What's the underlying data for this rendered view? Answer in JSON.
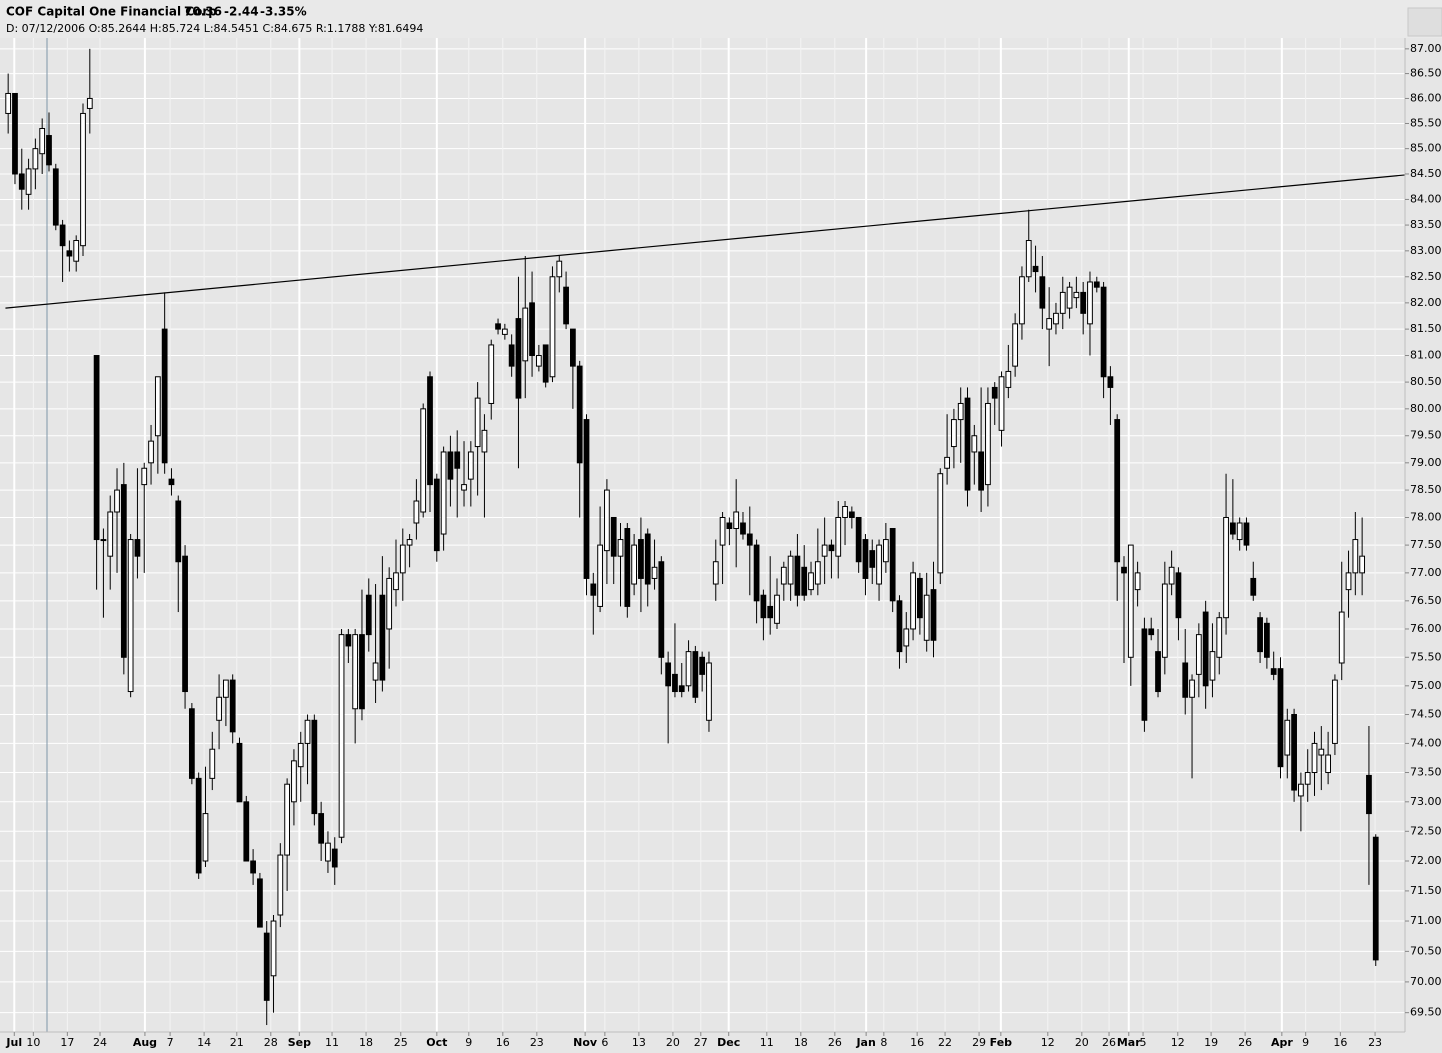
{
  "chart_data": {
    "type": "candlestick",
    "title": "COF Capital One Financial Corp",
    "last": "70.36",
    "change": "-2.44",
    "change_pct": "-3.35%",
    "change_color": "#e00000",
    "info": "D: 07/12/2006 O:85.2644 H:85.724 L:84.5451 C:84.675 R:1.1788 Y:81.6494",
    "up_color": "#ffffff",
    "down_color": "#000000",
    "log_scale": true,
    "grid": true,
    "xlim": [
      -1.2,
      205.3
    ],
    "ylim": [
      69.22,
      87.22
    ],
    "xticks": [
      {
        "value": 0.9,
        "label": "Jul"
      },
      {
        "value": 3.7,
        "label": "10"
      },
      {
        "value": 8.7,
        "label": "17"
      },
      {
        "value": 13.5,
        "label": "24"
      },
      {
        "value": 20.1,
        "label": "Aug"
      },
      {
        "value": 23.8,
        "label": "7"
      },
      {
        "value": 28.8,
        "label": "14"
      },
      {
        "value": 33.6,
        "label": "21"
      },
      {
        "value": 38.6,
        "label": "28"
      },
      {
        "value": 42.8,
        "label": "Sep"
      },
      {
        "value": 47.6,
        "label": "11"
      },
      {
        "value": 52.6,
        "label": "18"
      },
      {
        "value": 57.7,
        "label": "25"
      },
      {
        "value": 63.0,
        "label": "Oct"
      },
      {
        "value": 67.7,
        "label": "9"
      },
      {
        "value": 72.7,
        "label": "16"
      },
      {
        "value": 77.7,
        "label": "23"
      },
      {
        "value": 84.8,
        "label": "Nov"
      },
      {
        "value": 87.7,
        "label": "6"
      },
      {
        "value": 92.7,
        "label": "13"
      },
      {
        "value": 97.7,
        "label": "20"
      },
      {
        "value": 101.8,
        "label": "27"
      },
      {
        "value": 105.9,
        "label": "Dec"
      },
      {
        "value": 111.5,
        "label": "11"
      },
      {
        "value": 116.5,
        "label": "18"
      },
      {
        "value": 121.5,
        "label": "26"
      },
      {
        "value": 126.1,
        "label": "Jan"
      },
      {
        "value": 128.7,
        "label": "8"
      },
      {
        "value": 133.6,
        "label": "16"
      },
      {
        "value": 137.7,
        "label": "22"
      },
      {
        "value": 142.7,
        "label": "29"
      },
      {
        "value": 145.9,
        "label": "Feb"
      },
      {
        "value": 152.8,
        "label": "12"
      },
      {
        "value": 157.8,
        "label": "20"
      },
      {
        "value": 161.8,
        "label": "26"
      },
      {
        "value": 164.7,
        "label": "Mar"
      },
      {
        "value": 166.8,
        "label": "5"
      },
      {
        "value": 171.9,
        "label": "12"
      },
      {
        "value": 176.8,
        "label": "19"
      },
      {
        "value": 181.8,
        "label": "26"
      },
      {
        "value": 187.2,
        "label": "Apr"
      },
      {
        "value": 190.7,
        "label": "9"
      },
      {
        "value": 195.8,
        "label": "16"
      },
      {
        "value": 200.9,
        "label": "23"
      }
    ],
    "yticks": [
      {
        "value": 87,
        "label": "87.00"
      },
      {
        "value": 86.5,
        "label": "86.50"
      },
      {
        "value": 86,
        "label": "86.00"
      },
      {
        "value": 85.5,
        "label": "85.50"
      },
      {
        "value": 85,
        "label": "85.00"
      },
      {
        "value": 84.5,
        "label": "84.50"
      },
      {
        "value": 84,
        "label": "84.00"
      },
      {
        "value": 83.5,
        "label": "83.50"
      },
      {
        "value": 83,
        "label": "83.00"
      },
      {
        "value": 82.5,
        "label": "82.50"
      },
      {
        "value": 82,
        "label": "82.00"
      },
      {
        "value": 81.5,
        "label": "81.50"
      },
      {
        "value": 81,
        "label": "81.00"
      },
      {
        "value": 80.5,
        "label": "80.50"
      },
      {
        "value": 80,
        "label": "80.00"
      },
      {
        "value": 79.5,
        "label": "79.50"
      },
      {
        "value": 79,
        "label": "79.00"
      },
      {
        "value": 78.5,
        "label": "78.50"
      },
      {
        "value": 78,
        "label": "78.00"
      },
      {
        "value": 77.5,
        "label": "77.50"
      },
      {
        "value": 77,
        "label": "77.00"
      },
      {
        "value": 76.5,
        "label": "76.50"
      },
      {
        "value": 76,
        "label": "76.00"
      },
      {
        "value": 75.5,
        "label": "75.50"
      },
      {
        "value": 75,
        "label": "75.00"
      },
      {
        "value": 74.5,
        "label": "74.50"
      },
      {
        "value": 74,
        "label": "74.00"
      },
      {
        "value": 73.5,
        "label": "73.50"
      },
      {
        "value": 73,
        "label": "73.00"
      },
      {
        "value": 72.5,
        "label": "72.50"
      },
      {
        "value": 72,
        "label": "72.00"
      },
      {
        "value": 71.5,
        "label": "71.50"
      },
      {
        "value": 71,
        "label": "71.00"
      },
      {
        "value": 70.5,
        "label": "70.50"
      },
      {
        "value": 70,
        "label": "70.00"
      },
      {
        "value": 69.5,
        "label": "69.50"
      }
    ],
    "trendline": {
      "color": "#000000",
      "x": [
        -0.4,
        210.7
      ],
      "y": [
        81.9,
        84.55
      ]
    },
    "open": [
      85.7,
      86.1,
      84.5,
      84.1,
      84.6,
      84.9,
      85.26,
      84.6,
      83.5,
      83.0,
      82.8,
      83.1,
      85.8,
      81.0,
      77.6,
      77.3,
      78.1,
      78.6,
      74.9,
      77.6,
      78.6,
      79.0,
      79.5,
      81.5,
      78.7,
      78.3,
      77.3,
      74.6,
      73.4,
      72.0,
      73.4,
      74.4,
      74.8,
      75.1,
      74.0,
      73.0,
      72.0,
      71.7,
      70.8,
      70.1,
      71.1,
      72.1,
      73.0,
      73.6,
      74.0,
      74.4,
      72.8,
      72.0,
      72.2,
      72.4,
      75.9,
      74.6,
      75.9,
      76.6,
      75.1,
      76.6,
      76.0,
      76.7,
      77.0,
      77.5,
      77.9,
      78.1,
      80.6,
      78.7,
      77.7,
      79.2,
      79.2,
      78.5,
      78.7,
      79.3,
      79.2,
      80.1,
      81.6,
      81.4,
      81.2,
      81.7,
      80.9,
      82.0,
      80.8,
      81.2,
      80.6,
      82.5,
      82.3,
      81.5,
      80.8,
      79.8,
      76.8,
      76.4,
      77.4,
      78.0,
      77.3,
      77.8,
      76.8,
      77.6,
      77.7,
      76.9,
      77.2,
      75.4,
      75.2,
      75.0,
      75.0,
      75.6,
      75.5,
      74.4,
      76.8,
      77.5,
      77.9,
      77.8,
      77.9,
      77.7,
      77.5,
      76.6,
      76.4,
      76.1,
      76.8,
      76.8,
      77.3,
      77.1,
      76.7,
      76.8,
      77.3,
      77.5,
      77.3,
      78.0,
      78.1,
      78.0,
      77.6,
      77.4,
      76.8,
      77.2,
      77.8,
      76.5,
      75.7,
      76.0,
      76.9,
      75.8,
      76.7,
      77.0,
      78.9,
      79.3,
      79.8,
      80.2,
      79.2,
      79.2,
      78.6,
      80.4,
      79.6,
      80.4,
      80.8,
      81.6,
      82.5,
      82.7,
      82.5,
      81.5,
      81.6,
      81.8,
      81.9,
      82.1,
      82.2,
      81.6,
      82.4,
      82.3,
      80.6,
      79.8,
      77.1,
      75.5,
      76.7,
      76.0,
      76.0,
      75.6,
      75.5,
      76.8,
      77.0,
      75.4,
      74.8,
      75.2,
      76.3,
      75.1,
      75.5,
      76.2,
      77.9,
      77.6,
      77.9,
      76.9,
      76.2,
      76.1,
      75.3,
      75.3,
      73.8,
      74.5,
      73.1,
      73.3,
      73.5,
      73.8,
      73.5,
      74.0,
      75.4,
      76.7,
      77.0,
      77.0,
      73.45,
      72.4
    ],
    "high": [
      86.5,
      86.1,
      85.0,
      84.8,
      85.2,
      85.6,
      85.72,
      84.7,
      83.6,
      83.2,
      83.3,
      85.9,
      87.0,
      81.0,
      77.8,
      78.4,
      78.9,
      79.0,
      77.7,
      78.9,
      79.0,
      79.7,
      80.6,
      82.2,
      78.9,
      78.4,
      77.5,
      74.7,
      73.5,
      73.6,
      74.2,
      75.2,
      75.1,
      75.2,
      74.1,
      73.1,
      72.2,
      71.8,
      71.0,
      71.1,
      72.3,
      73.4,
      73.9,
      74.2,
      74.5,
      74.5,
      73.0,
      72.5,
      72.4,
      76.0,
      76.0,
      76.0,
      76.7,
      76.9,
      76.8,
      77.3,
      77.1,
      77.6,
      77.8,
      77.7,
      78.7,
      80.1,
      80.7,
      78.8,
      79.3,
      79.5,
      79.6,
      79.4,
      79.4,
      80.5,
      79.9,
      81.3,
      81.7,
      81.6,
      81.4,
      82.5,
      82.9,
      82.6,
      81.2,
      81.2,
      82.7,
      82.9,
      82.6,
      81.5,
      80.9,
      79.9,
      77.0,
      78.2,
      78.7,
      78.0,
      77.9,
      77.9,
      77.7,
      78.0,
      77.8,
      77.6,
      77.3,
      75.6,
      76.1,
      75.4,
      75.8,
      75.7,
      75.6,
      75.6,
      77.6,
      78.1,
      78.0,
      78.7,
      78.1,
      78.2,
      77.6,
      76.7,
      77.3,
      76.9,
      77.2,
      77.4,
      77.7,
      77.5,
      77.2,
      77.8,
      78.0,
      77.6,
      78.3,
      78.3,
      78.2,
      78.0,
      77.7,
      77.6,
      77.6,
      77.9,
      77.8,
      76.6,
      76.3,
      77.2,
      77.0,
      77.0,
      77.2,
      78.9,
      79.9,
      80.0,
      80.4,
      80.4,
      79.7,
      80.4,
      80.4,
      80.5,
      80.7,
      81.2,
      81.8,
      82.7,
      83.8,
      83.1,
      82.9,
      82.3,
      82.0,
      82.5,
      82.4,
      82.5,
      82.4,
      82.6,
      82.5,
      82.4,
      80.8,
      79.9,
      77.3,
      77.5,
      77.2,
      76.2,
      76.2,
      76.0,
      77.2,
      77.4,
      77.1,
      76.0,
      75.2,
      76.1,
      76.5,
      76.1,
      76.3,
      78.8,
      78.7,
      78.0,
      78.0,
      77.2,
      76.3,
      76.2,
      75.6,
      75.5,
      74.6,
      74.6,
      73.5,
      73.9,
      74.2,
      74.3,
      74.2,
      75.2,
      77.2,
      77.4,
      78.1,
      78.0,
      74.3,
      72.45
    ],
    "low": [
      85.3,
      84.3,
      83.8,
      83.8,
      84.2,
      84.5,
      84.55,
      83.4,
      82.4,
      82.6,
      82.6,
      82.9,
      85.3,
      76.7,
      76.2,
      76.7,
      77.0,
      75.2,
      74.8,
      76.9,
      77.0,
      78.6,
      78.8,
      78.8,
      78.4,
      76.3,
      74.6,
      73.3,
      71.7,
      71.9,
      73.2,
      73.9,
      74.3,
      74.0,
      73.0,
      72.0,
      71.6,
      70.9,
      69.3,
      69.5,
      70.9,
      71.5,
      72.6,
      73.0,
      73.3,
      72.6,
      72.0,
      71.8,
      71.6,
      72.3,
      75.4,
      74.0,
      74.4,
      75.6,
      74.7,
      74.9,
      75.3,
      76.4,
      76.5,
      77.1,
      77.6,
      78.0,
      78.1,
      77.2,
      77.4,
      78.2,
      78.0,
      78.2,
      78.2,
      78.4,
      78.0,
      79.8,
      81.4,
      81.3,
      80.6,
      78.9,
      80.2,
      80.6,
      80.7,
      80.4,
      80.5,
      82.2,
      81.5,
      80.0,
      78.0,
      76.6,
      75.9,
      76.3,
      76.8,
      76.8,
      76.4,
      76.2,
      76.6,
      76.3,
      76.4,
      76.7,
      75.2,
      74.0,
      74.8,
      74.8,
      74.9,
      74.7,
      74.9,
      74.2,
      76.5,
      76.8,
      77.5,
      77.1,
      77.6,
      76.6,
      76.1,
      75.8,
      75.9,
      76.0,
      76.5,
      76.5,
      76.4,
      76.5,
      76.6,
      76.6,
      76.8,
      76.9,
      76.9,
      77.5,
      77.8,
      77.0,
      76.6,
      76.8,
      76.5,
      77.0,
      76.3,
      75.3,
      75.4,
      75.8,
      75.9,
      75.6,
      75.5,
      76.8,
      78.6,
      78.9,
      79.0,
      78.2,
      78.6,
      78.1,
      78.2,
      79.7,
      79.3,
      80.2,
      80.6,
      81.3,
      82.4,
      82.2,
      81.5,
      80.8,
      81.4,
      81.5,
      81.7,
      81.9,
      81.4,
      81.0,
      82.2,
      80.2,
      79.7,
      76.5,
      75.4,
      75.0,
      76.4,
      74.2,
      75.8,
      74.8,
      75.2,
      76.6,
      75.8,
      74.5,
      73.4,
      74.8,
      74.6,
      74.8,
      75.2,
      75.9,
      77.6,
      77.4,
      77.4,
      76.5,
      75.4,
      75.3,
      75.1,
      73.4,
      73.4,
      73.0,
      72.5,
      73.0,
      73.1,
      73.2,
      73.3,
      73.8,
      75.1,
      76.2,
      76.6,
      76.6,
      71.6,
      70.26
    ],
    "close": [
      86.1,
      84.5,
      84.2,
      84.6,
      85.0,
      85.4,
      84.68,
      83.5,
      83.1,
      82.9,
      83.2,
      85.7,
      86.0,
      77.6,
      77.6,
      78.1,
      78.5,
      75.5,
      77.6,
      77.3,
      78.9,
      79.4,
      80.6,
      79.0,
      78.6,
      77.2,
      74.9,
      73.4,
      71.8,
      72.8,
      73.9,
      74.8,
      75.1,
      74.2,
      73.0,
      72.0,
      71.8,
      70.9,
      69.7,
      71.0,
      72.1,
      73.3,
      73.7,
      74.0,
      74.4,
      72.8,
      72.3,
      72.3,
      71.9,
      75.9,
      75.7,
      75.9,
      74.6,
      75.9,
      75.4,
      75.1,
      76.9,
      77.0,
      77.5,
      77.6,
      78.3,
      80.0,
      78.6,
      77.4,
      79.2,
      78.7,
      78.9,
      78.6,
      79.2,
      80.2,
      79.6,
      81.2,
      81.5,
      81.5,
      80.8,
      80.2,
      81.9,
      81.0,
      81.0,
      80.5,
      82.5,
      82.8,
      81.6,
      80.8,
      79.0,
      76.9,
      76.6,
      77.5,
      78.5,
      77.3,
      77.6,
      76.4,
      77.5,
      76.9,
      76.8,
      77.1,
      75.5,
      75.0,
      74.9,
      74.9,
      75.6,
      74.8,
      75.2,
      75.4,
      77.2,
      78.0,
      77.8,
      78.1,
      77.7,
      77.5,
      76.5,
      76.2,
      76.2,
      76.6,
      77.1,
      77.3,
      76.6,
      76.6,
      77.0,
      77.2,
      77.5,
      77.4,
      78.0,
      78.2,
      78.0,
      77.2,
      76.9,
      77.1,
      77.5,
      77.6,
      76.5,
      75.6,
      76.0,
      77.0,
      76.2,
      76.6,
      75.8,
      78.8,
      79.1,
      79.8,
      80.1,
      78.5,
      79.5,
      78.5,
      80.1,
      80.2,
      80.6,
      80.7,
      81.6,
      82.5,
      83.2,
      82.6,
      81.9,
      81.7,
      81.8,
      82.2,
      82.3,
      82.2,
      81.8,
      82.4,
      82.3,
      80.6,
      80.4,
      77.2,
      77.0,
      77.5,
      77.0,
      74.4,
      75.9,
      74.9,
      76.8,
      77.1,
      76.2,
      74.8,
      75.1,
      75.9,
      75.0,
      75.6,
      76.2,
      78.0,
      77.7,
      77.9,
      77.5,
      76.6,
      75.6,
      75.5,
      75.2,
      73.6,
      74.4,
      73.2,
      73.3,
      73.5,
      74.0,
      73.9,
      73.8,
      75.1,
      76.3,
      77.0,
      77.6,
      77.3,
      72.8,
      70.36
    ]
  }
}
